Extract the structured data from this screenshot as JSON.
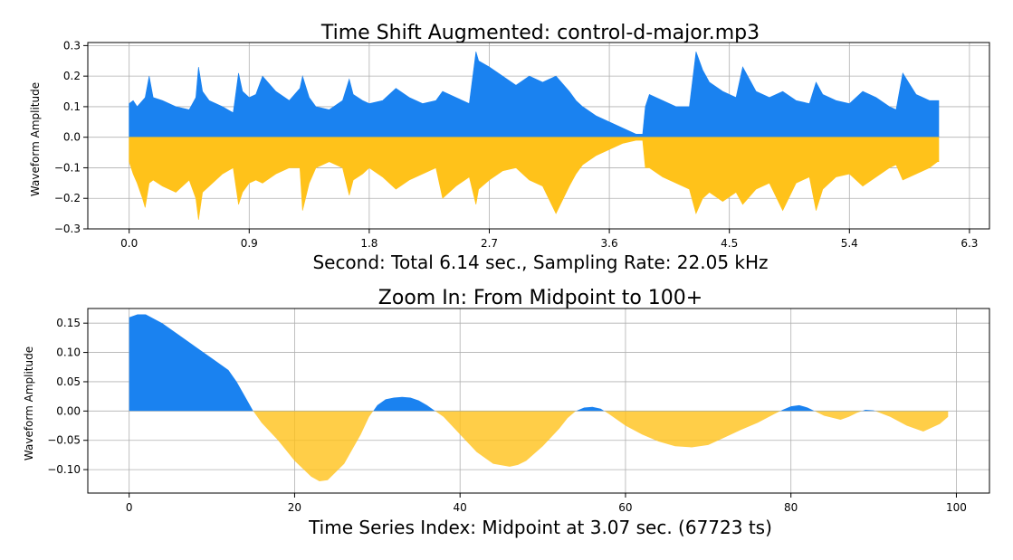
{
  "chart_data": [
    {
      "type": "area",
      "title": "Time Shift Augmented: control-d-major.mp3",
      "xlabel": "Second: Total 6.14 sec., Sampling Rate: 22.05 kHz",
      "ylabel": "Waveform Amplitude",
      "xlim": [
        -0.31,
        6.45
      ],
      "ylim": [
        -0.3,
        0.31
      ],
      "xticks": [
        "0.0",
        "0.9",
        "1.8",
        "2.7",
        "3.6",
        "4.5",
        "5.4",
        "6.3"
      ],
      "xtick_values": [
        0,
        0.9,
        1.8,
        2.7,
        3.6,
        4.5,
        5.4,
        6.3
      ],
      "yticks": [
        "−0.3",
        "−0.2",
        "−0.1",
        "0.0",
        "0.1",
        "0.2",
        "0.3"
      ],
      "ytick_values": [
        -0.3,
        -0.2,
        -0.1,
        0.0,
        0.1,
        0.2,
        0.3
      ],
      "grid": true,
      "colors": {
        "positive": "#1a82f0",
        "negative": "#ffc21a"
      },
      "x": [
        0.0,
        0.03,
        0.06,
        0.1,
        0.12,
        0.15,
        0.18,
        0.25,
        0.35,
        0.45,
        0.5,
        0.52,
        0.55,
        0.6,
        0.7,
        0.78,
        0.82,
        0.85,
        0.9,
        0.95,
        1.0,
        1.1,
        1.2,
        1.28,
        1.3,
        1.35,
        1.4,
        1.5,
        1.6,
        1.65,
        1.68,
        1.75,
        1.8,
        1.9,
        2.0,
        2.1,
        2.2,
        2.3,
        2.35,
        2.45,
        2.55,
        2.6,
        2.62,
        2.7,
        2.8,
        2.9,
        3.0,
        3.1,
        3.2,
        3.3,
        3.35,
        3.4,
        3.5,
        3.6,
        3.7,
        3.8,
        3.85,
        3.87,
        3.9,
        4.0,
        4.1,
        4.2,
        4.25,
        4.3,
        4.35,
        4.45,
        4.55,
        4.6,
        4.7,
        4.8,
        4.9,
        5.0,
        5.1,
        5.15,
        5.2,
        5.3,
        5.4,
        5.5,
        5.6,
        5.7,
        5.75,
        5.8,
        5.9,
        6.0,
        6.06,
        6.07
      ],
      "upper": [
        0.11,
        0.12,
        0.1,
        0.12,
        0.13,
        0.2,
        0.13,
        0.12,
        0.1,
        0.09,
        0.13,
        0.23,
        0.15,
        0.12,
        0.1,
        0.08,
        0.21,
        0.15,
        0.13,
        0.14,
        0.2,
        0.15,
        0.12,
        0.16,
        0.2,
        0.13,
        0.1,
        0.09,
        0.12,
        0.19,
        0.14,
        0.12,
        0.11,
        0.12,
        0.16,
        0.13,
        0.11,
        0.12,
        0.15,
        0.13,
        0.11,
        0.28,
        0.25,
        0.23,
        0.2,
        0.17,
        0.2,
        0.18,
        0.2,
        0.15,
        0.12,
        0.1,
        0.07,
        0.05,
        0.03,
        0.01,
        0.01,
        0.1,
        0.14,
        0.12,
        0.1,
        0.1,
        0.28,
        0.22,
        0.18,
        0.15,
        0.13,
        0.23,
        0.15,
        0.13,
        0.15,
        0.12,
        0.11,
        0.18,
        0.14,
        0.12,
        0.11,
        0.15,
        0.13,
        0.1,
        0.09,
        0.21,
        0.14,
        0.12,
        0.12,
        0.12
      ],
      "lower": [
        -0.08,
        -0.12,
        -0.15,
        -0.2,
        -0.23,
        -0.15,
        -0.14,
        -0.16,
        -0.18,
        -0.14,
        -0.2,
        -0.27,
        -0.18,
        -0.16,
        -0.12,
        -0.1,
        -0.22,
        -0.18,
        -0.15,
        -0.14,
        -0.15,
        -0.12,
        -0.1,
        -0.1,
        -0.24,
        -0.15,
        -0.1,
        -0.08,
        -0.1,
        -0.19,
        -0.14,
        -0.12,
        -0.1,
        -0.13,
        -0.17,
        -0.14,
        -0.12,
        -0.1,
        -0.2,
        -0.16,
        -0.13,
        -0.22,
        -0.17,
        -0.14,
        -0.11,
        -0.1,
        -0.14,
        -0.16,
        -0.25,
        -0.16,
        -0.12,
        -0.09,
        -0.06,
        -0.04,
        -0.02,
        -0.01,
        -0.01,
        -0.1,
        -0.1,
        -0.13,
        -0.15,
        -0.17,
        -0.25,
        -0.2,
        -0.18,
        -0.21,
        -0.18,
        -0.22,
        -0.17,
        -0.15,
        -0.24,
        -0.15,
        -0.13,
        -0.24,
        -0.17,
        -0.13,
        -0.12,
        -0.16,
        -0.13,
        -0.1,
        -0.09,
        -0.14,
        -0.12,
        -0.1,
        -0.08,
        -0.08
      ]
    },
    {
      "type": "area",
      "title": "Zoom In: From Midpoint to 100+",
      "xlabel": "Time Series Index: Midpoint at 3.07 sec. (67723 ts)",
      "ylabel": "Waveform Amplitude",
      "xlim": [
        -5,
        104
      ],
      "ylim": [
        -0.14,
        0.175
      ],
      "xticks": [
        "0",
        "20",
        "40",
        "60",
        "80",
        "100"
      ],
      "xtick_values": [
        0,
        20,
        40,
        60,
        80,
        100
      ],
      "yticks": [
        "−0.10",
        "−0.05",
        "0.00",
        "0.05",
        "0.10",
        "0.15"
      ],
      "ytick_values": [
        -0.1,
        -0.05,
        0.0,
        0.05,
        0.1,
        0.15
      ],
      "grid": true,
      "colors": {
        "positive": "#1a82f0",
        "negative": "#ffc21a"
      },
      "x": [
        0,
        1,
        2,
        4,
        6,
        8,
        10,
        12,
        13,
        14,
        15,
        16,
        18,
        20,
        22,
        23,
        24,
        26,
        28,
        29,
        30,
        31,
        32,
        33,
        34,
        35,
        36,
        37,
        38,
        40,
        42,
        44,
        46,
        47,
        48,
        50,
        52,
        53,
        54,
        55,
        56,
        57,
        58,
        60,
        62,
        64,
        66,
        68,
        70,
        72,
        74,
        76,
        78,
        79,
        80,
        81,
        82,
        84,
        86,
        87,
        88,
        89,
        90,
        92,
        94,
        96,
        98,
        99
      ],
      "y": [
        0.16,
        0.165,
        0.165,
        0.15,
        0.13,
        0.11,
        0.09,
        0.07,
        0.05,
        0.025,
        0.0,
        -0.02,
        -0.05,
        -0.085,
        -0.112,
        -0.12,
        -0.118,
        -0.09,
        -0.04,
        -0.01,
        0.01,
        0.02,
        0.023,
        0.024,
        0.023,
        0.018,
        0.01,
        0.0,
        -0.01,
        -0.04,
        -0.07,
        -0.09,
        -0.095,
        -0.092,
        -0.085,
        -0.06,
        -0.03,
        -0.012,
        0.0,
        0.006,
        0.007,
        0.004,
        -0.005,
        -0.025,
        -0.04,
        -0.052,
        -0.06,
        -0.062,
        -0.058,
        -0.045,
        -0.032,
        -0.02,
        -0.005,
        0.002,
        0.008,
        0.01,
        0.006,
        -0.008,
        -0.015,
        -0.01,
        -0.003,
        0.002,
        0.001,
        -0.01,
        -0.025,
        -0.035,
        -0.022,
        -0.01
      ]
    }
  ]
}
